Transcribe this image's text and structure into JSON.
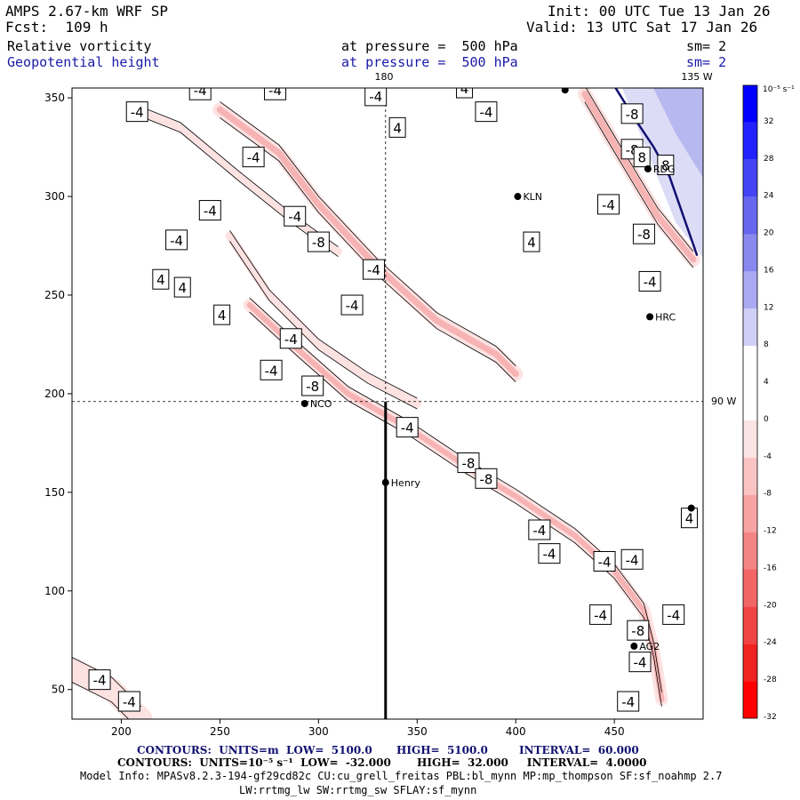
{
  "header": {
    "model_title": "AMPS 2.67-km WRF SP",
    "forecast": "Fcst:  109 h",
    "init": "Init: 00 UTC Tue 13 Jan 26",
    "valid": "Valid: 13 UTC Sat 17 Jan 26",
    "field1": "Relative vorticity",
    "field1_level": "at pressure =  500 hPa",
    "field1_sm": "sm= 2",
    "field2": "Geopotential height",
    "field2_level": "at pressure =  500 hPa",
    "field2_sm": "sm= 2"
  },
  "map": {
    "meridian_labels": {
      "top_180": "180",
      "top_135w": "135 W",
      "right_90w": "90 W"
    },
    "x_ticks": [
      "200",
      "250",
      "300",
      "350",
      "400",
      "450"
    ],
    "y_ticks": [
      "350",
      "300",
      "250",
      "200",
      "150",
      "100",
      "50"
    ],
    "stations": [
      {
        "name": "KLN",
        "x": 401,
        "y": 300
      },
      {
        "name": "RDG",
        "x": 467,
        "y": 314
      },
      {
        "name": "HRC",
        "x": 468,
        "y": 239
      },
      {
        "name": "NCO",
        "x": 293,
        "y": 195
      },
      {
        "name": "Henry",
        "x": 334,
        "y": 155
      },
      {
        "name": "AG2",
        "x": 460,
        "y": 72
      },
      {
        "name": "",
        "x": 425,
        "y": 354
      },
      {
        "name": "",
        "x": 489,
        "y": 142
      }
    ],
    "contour_labels": [
      {
        "t": "-4",
        "x": 208,
        "y": 343
      },
      {
        "t": "-4",
        "x": 240,
        "y": 354
      },
      {
        "t": "-4",
        "x": 278,
        "y": 354
      },
      {
        "t": "-4",
        "x": 329,
        "y": 351
      },
      {
        "t": "4",
        "x": 340,
        "y": 335
      },
      {
        "t": "4",
        "x": 374,
        "y": 355
      },
      {
        "t": "-4",
        "x": 385,
        "y": 343
      },
      {
        "t": "-4",
        "x": 267,
        "y": 320
      },
      {
        "t": "-4",
        "x": 245,
        "y": 293
      },
      {
        "t": "-4",
        "x": 288,
        "y": 290
      },
      {
        "t": "-8",
        "x": 300,
        "y": 277
      },
      {
        "t": "-4",
        "x": 328,
        "y": 263
      },
      {
        "t": "4",
        "x": 408,
        "y": 277
      },
      {
        "t": "-4",
        "x": 228,
        "y": 278
      },
      {
        "t": "4",
        "x": 220,
        "y": 258
      },
      {
        "t": "4",
        "x": 231,
        "y": 254
      },
      {
        "t": "4",
        "x": 251,
        "y": 240
      },
      {
        "t": "-4",
        "x": 317,
        "y": 245
      },
      {
        "t": "-4",
        "x": 286,
        "y": 228
      },
      {
        "t": "-4",
        "x": 276,
        "y": 212
      },
      {
        "t": "-8",
        "x": 297,
        "y": 204
      },
      {
        "t": "-4",
        "x": 345,
        "y": 183
      },
      {
        "t": "-8",
        "x": 376,
        "y": 165
      },
      {
        "t": "-8",
        "x": 385,
        "y": 157
      },
      {
        "t": "-4",
        "x": 412,
        "y": 131
      },
      {
        "t": "-4",
        "x": 417,
        "y": 119
      },
      {
        "t": "-4",
        "x": 445,
        "y": 115
      },
      {
        "t": "-4",
        "x": 459,
        "y": 116
      },
      {
        "t": "-4",
        "x": 443,
        "y": 88
      },
      {
        "t": "-4",
        "x": 480,
        "y": 88
      },
      {
        "t": "-8",
        "x": 462,
        "y": 80
      },
      {
        "t": "-4",
        "x": 463,
        "y": 64
      },
      {
        "t": "-4",
        "x": 457,
        "y": 44
      },
      {
        "t": "-4",
        "x": 189,
        "y": 55
      },
      {
        "t": "-4",
        "x": 204,
        "y": 44
      },
      {
        "t": "4",
        "x": 488,
        "y": 137
      },
      {
        "t": "-8",
        "x": 459,
        "y": 342
      },
      {
        "t": "-8",
        "x": 459,
        "y": 324
      },
      {
        "t": "8",
        "x": 464,
        "y": 320
      },
      {
        "t": "8",
        "x": 476,
        "y": 316
      },
      {
        "t": "-4",
        "x": 447,
        "y": 296
      },
      {
        "t": "-8",
        "x": 465,
        "y": 281
      },
      {
        "t": "-4",
        "x": 468,
        "y": 257
      }
    ],
    "vorticity_bands": [
      {
        "name": "main-trough-band",
        "width": 16,
        "strong": true,
        "pts": [
          [
            250,
            344
          ],
          [
            280,
            322
          ],
          [
            300,
            296
          ],
          [
            330,
            264
          ],
          [
            360,
            237
          ],
          [
            390,
            220
          ],
          [
            400,
            210
          ]
        ]
      },
      {
        "name": "southern-band",
        "width": 14,
        "strong": true,
        "pts": [
          [
            265,
            245
          ],
          [
            290,
            222
          ],
          [
            315,
            200
          ],
          [
            345,
            183
          ],
          [
            375,
            163
          ],
          [
            400,
            148
          ],
          [
            430,
            128
          ],
          [
            450,
            110
          ],
          [
            465,
            90
          ],
          [
            470,
            70
          ],
          [
            474,
            45
          ]
        ]
      },
      {
        "name": "western-band",
        "width": 10,
        "strong": false,
        "pts": [
          [
            255,
            280
          ],
          [
            275,
            250
          ],
          [
            300,
            225
          ],
          [
            325,
            208
          ],
          [
            350,
            195
          ]
        ]
      },
      {
        "name": "northwest-band",
        "width": 9,
        "strong": false,
        "pts": [
          [
            205,
            345
          ],
          [
            230,
            335
          ],
          [
            260,
            310
          ],
          [
            285,
            290
          ],
          [
            310,
            272
          ]
        ]
      },
      {
        "name": "coastal-band",
        "width": 16,
        "strong": true,
        "pts": [
          [
            435,
            352
          ],
          [
            448,
            330
          ],
          [
            460,
            310
          ],
          [
            472,
            290
          ],
          [
            490,
            268
          ]
        ]
      },
      {
        "name": "southwest-blob",
        "width": 26,
        "strong": false,
        "pts": [
          [
            175,
            60
          ],
          [
            195,
            50
          ],
          [
            210,
            35
          ]
        ]
      }
    ],
    "height_contour_line": [
      [
        450,
        356
      ],
      [
        460,
        340
      ],
      [
        470,
        325
      ],
      [
        478,
        310
      ],
      [
        485,
        290
      ],
      [
        492,
        270
      ]
    ]
  },
  "colorbar": {
    "unit_label": "10⁻⁵ s⁻¹",
    "levels": [
      "32",
      "28",
      "24",
      "20",
      "16",
      "12",
      "8",
      "4",
      "0",
      "-4",
      "-8",
      "-12",
      "-16",
      "-20",
      "-24",
      "-28",
      "-32"
    ],
    "colors": [
      "#0000ff",
      "#2222ff",
      "#4444f2",
      "#6666ee",
      "#8888ee",
      "#aaaaf2",
      "#d0d0f6",
      "#ffffff",
      "#ffffff",
      "#fde4e4",
      "#fbc4c4",
      "#f8a4a4",
      "#f58585",
      "#f26666",
      "#f04444",
      "#f02222",
      "#ff0000"
    ]
  },
  "footer": {
    "contours1_label": "CONTOURS:  UNITS=m  LOW=  5100.0",
    "contours1_high": "HIGH=  5100.0",
    "contours1_interval": "INTERVAL=  60.000",
    "contours2": "CONTOURS:  UNITS=10⁻⁵ s⁻¹  LOW=  -32.000       HIGH=  32.000     INTERVAL=  4.0000",
    "model_info": "Model Info: MPASv8.2.3-194-gf29cd82c CU:cu_grell_freitas PBL:bl_mynn MP:mp_thompson SF:sf_noahmp 2.7",
    "model_info2": "LW:rrtmg_lw SW:rrtmg_sw SFLAY:sf_mynn"
  }
}
